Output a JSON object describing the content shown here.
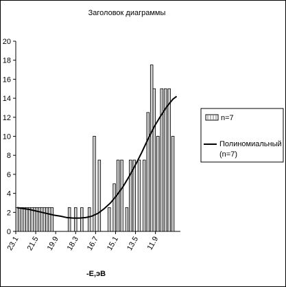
{
  "chart_data": {
    "type": "bar",
    "title": "Заголовок диаграммы",
    "xlabel": "-E,эВ",
    "ylabel": "",
    "x_direction": "descending",
    "xlim": [
      23.1,
      9.9
    ],
    "ylim": [
      0,
      20
    ],
    "y_ticks": [
      0,
      2,
      4,
      6,
      8,
      10,
      12,
      14,
      16,
      18,
      20
    ],
    "x_ticks": [
      "23.1",
      "21.5",
      "19.9",
      "18.3",
      "16.7",
      "15.1",
      "13.5",
      "11.9"
    ],
    "grid": false,
    "legend_position": "right",
    "series": [
      {
        "name": "n=7",
        "type": "bar",
        "x": [
          23.0,
          22.8,
          22.6,
          22.4,
          22.2,
          22.0,
          21.8,
          21.6,
          21.4,
          21.2,
          21.0,
          20.8,
          20.6,
          20.4,
          20.2,
          18.8,
          18.3,
          17.8,
          17.2,
          16.8,
          16.4,
          15.6,
          15.2,
          14.9,
          14.6,
          14.2,
          13.9,
          13.6,
          13.2,
          12.8,
          12.5,
          12.2,
          12.0,
          11.7,
          11.4,
          11.1,
          10.8,
          10.5
        ],
        "values": [
          2.5,
          2.5,
          2.5,
          2.5,
          2.5,
          2.5,
          2.5,
          2.5,
          2.5,
          2.5,
          2.5,
          2.5,
          2.5,
          2.5,
          2.5,
          2.5,
          2.5,
          2.5,
          2.5,
          10,
          7.5,
          2.5,
          5,
          7.5,
          7.5,
          2.5,
          7.5,
          7.5,
          7.5,
          7.5,
          12.5,
          17.5,
          15,
          10,
          15,
          15,
          15,
          10
        ]
      },
      {
        "name": "Полиномиальный (n=7)",
        "type": "line",
        "x": [
          23.0,
          22.0,
          21.0,
          20.0,
          19.5,
          19.0,
          18.5,
          18.0,
          17.5,
          17.0,
          16.5,
          16.0,
          15.5,
          15.0,
          14.5,
          14.0,
          13.5,
          13.0,
          12.5,
          12.0,
          11.5,
          11.0,
          10.5,
          10.2
        ],
        "values": [
          2.5,
          2.3,
          2.0,
          1.7,
          1.6,
          1.45,
          1.4,
          1.4,
          1.45,
          1.6,
          1.9,
          2.4,
          3.0,
          3.8,
          4.7,
          5.8,
          7.0,
          8.3,
          9.7,
          11.0,
          12.1,
          13.1,
          13.9,
          14.2
        ]
      }
    ]
  }
}
